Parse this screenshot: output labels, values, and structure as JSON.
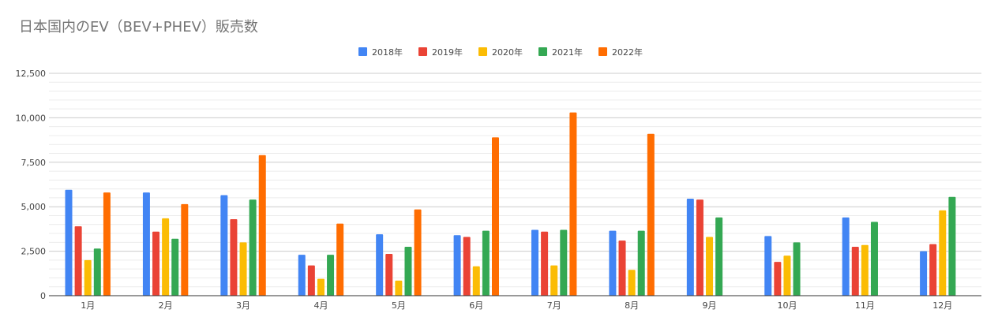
{
  "chart_data": {
    "type": "bar",
    "title": "日本国内のEV（BEV+PHEV）販売数",
    "xlabel": "",
    "ylabel": "",
    "ylim": [
      0,
      12500
    ],
    "yticks": [
      "0",
      "2,500",
      "5,000",
      "7,500",
      "10,000",
      "12,500"
    ],
    "ytick_values": [
      0,
      2500,
      5000,
      7500,
      10000,
      12500
    ],
    "grid": true,
    "legend_position": "top-center",
    "categories": [
      "1月",
      "2月",
      "3月",
      "4月",
      "5月",
      "6月",
      "7月",
      "8月",
      "9月",
      "10月",
      "11月",
      "12月"
    ],
    "series": [
      {
        "name": "2018年",
        "color": "#4285f4",
        "values": [
          5950,
          5800,
          5650,
          2300,
          3450,
          3400,
          3700,
          3650,
          5450,
          3350,
          4400,
          2500
        ]
      },
      {
        "name": "2019年",
        "color": "#ea4335",
        "values": [
          3900,
          3600,
          4300,
          1700,
          2350,
          3300,
          3600,
          3100,
          5400,
          1900,
          2750,
          2900
        ]
      },
      {
        "name": "2020年",
        "color": "#fbbc04",
        "values": [
          2000,
          4350,
          3000,
          950,
          850,
          1650,
          1700,
          1450,
          3300,
          2250,
          2850,
          4800
        ]
      },
      {
        "name": "2021年",
        "color": "#34a853",
        "values": [
          2650,
          3200,
          5400,
          2300,
          2750,
          3650,
          3700,
          3650,
          4400,
          3000,
          4150,
          5550
        ]
      },
      {
        "name": "2022年",
        "color": "#ff6d01",
        "values": [
          5800,
          5150,
          7900,
          4050,
          4850,
          8900,
          10300,
          9100,
          null,
          null,
          null,
          null
        ]
      }
    ]
  }
}
